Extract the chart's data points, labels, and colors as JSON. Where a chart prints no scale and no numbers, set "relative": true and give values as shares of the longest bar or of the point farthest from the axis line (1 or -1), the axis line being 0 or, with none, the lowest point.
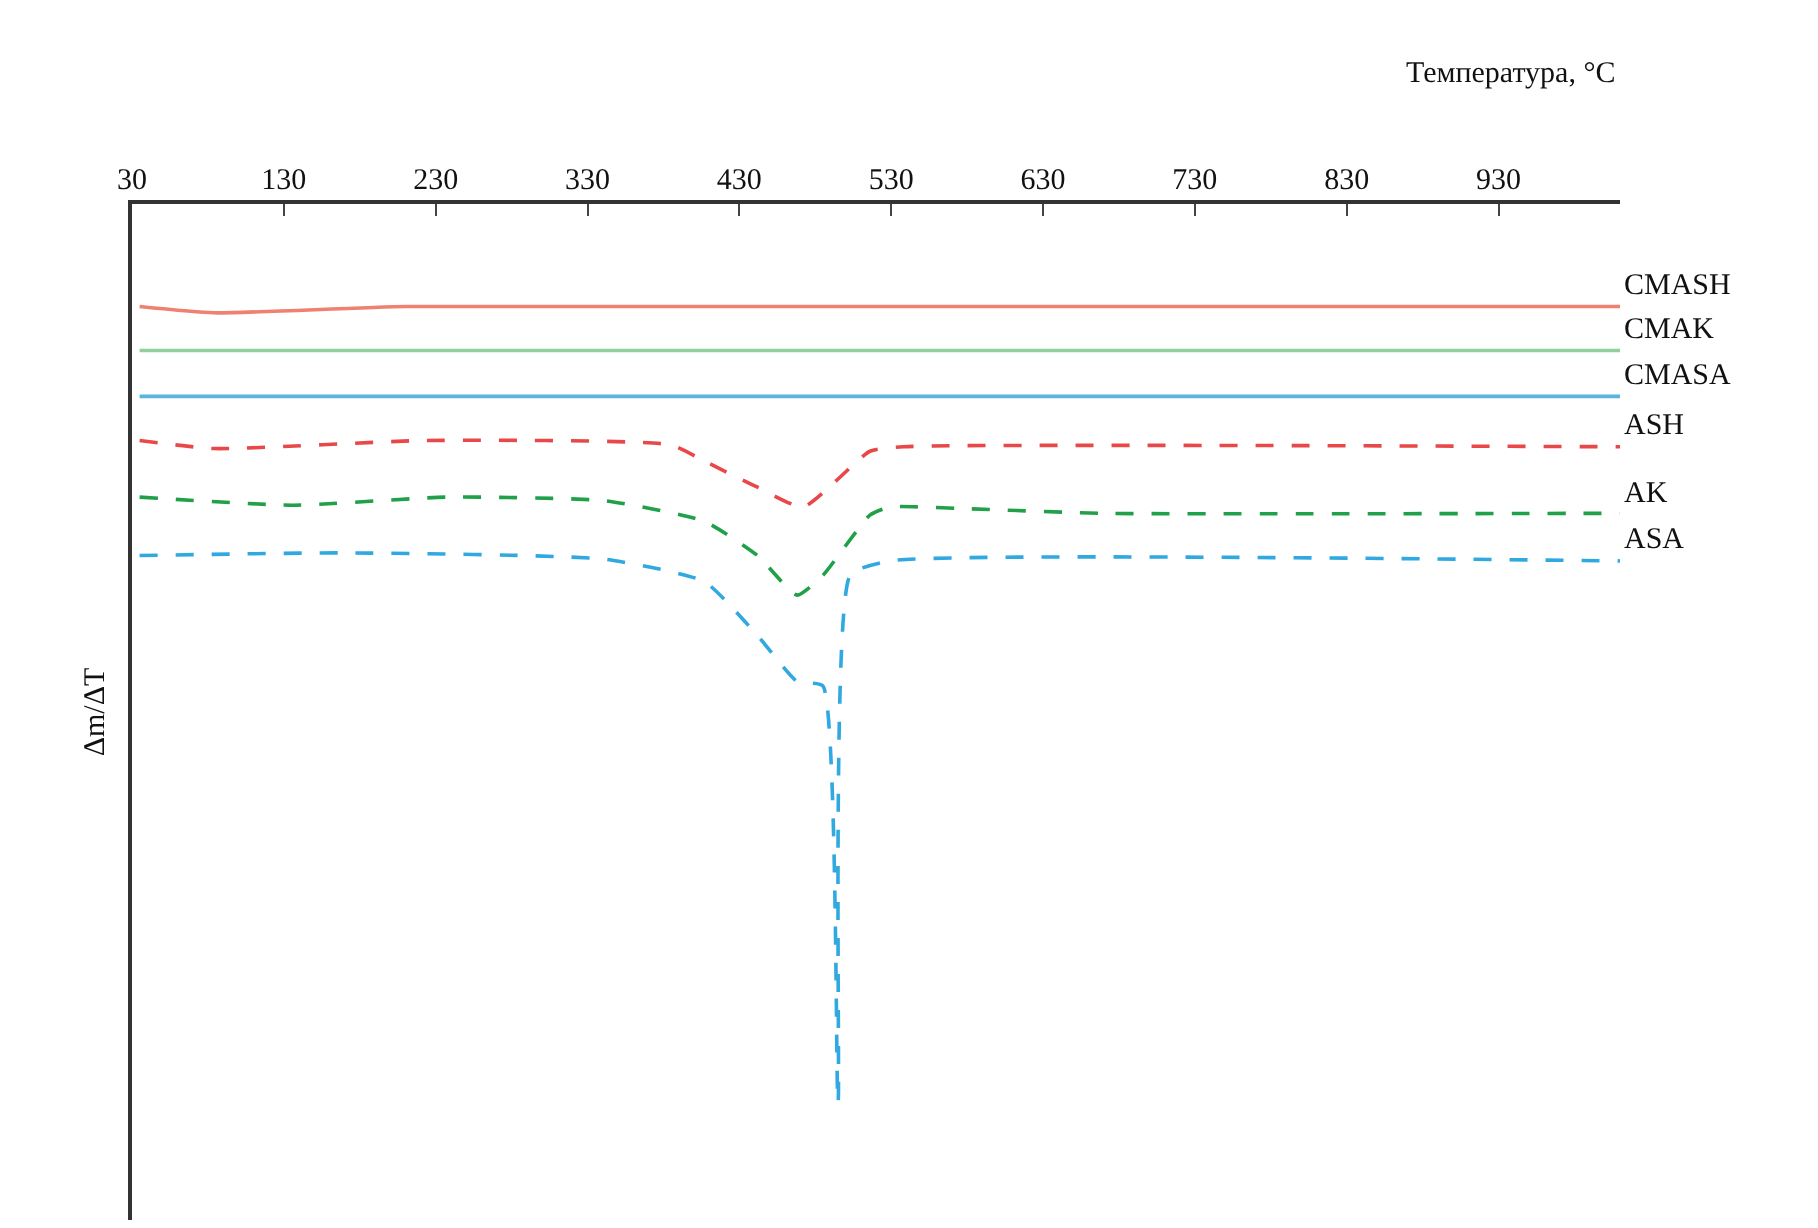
{
  "chart_data": {
    "type": "line",
    "relative": true,
    "xlabel": "Температура, °C",
    "ylabel": "Δm/ΔT",
    "xlim": [
      30,
      1010
    ],
    "xticks": [
      30,
      130,
      230,
      330,
      430,
      530,
      630,
      730,
      830,
      930
    ],
    "legend": false,
    "grid": false,
    "marker": "none",
    "series": [
      {
        "name": "CMASH",
        "color": "#f08070",
        "line_style": "solid",
        "x": [
          35,
          84,
          211,
          1010
        ],
        "values": [
          -0.114,
          -0.121,
          -0.114,
          -0.114
        ]
      },
      {
        "name": "CMAK",
        "color": "#8fd09c",
        "line_style": "solid",
        "x": [
          35,
          1010
        ],
        "values": [
          -0.163,
          -0.163
        ]
      },
      {
        "name": "CMASA",
        "color": "#5ab4e0",
        "line_style": "solid",
        "x": [
          35,
          1010
        ],
        "values": [
          -0.214,
          -0.214
        ]
      },
      {
        "name": "ASH",
        "color": "#e84848",
        "line_style": "dashed",
        "x": [
          35,
          84,
          224,
          385,
          407,
          442,
          472,
          516,
          538,
          1010
        ],
        "values": [
          -0.263,
          -0.272,
          -0.263,
          -0.268,
          -0.286,
          -0.315,
          -0.337,
          -0.275,
          -0.27,
          -0.27
        ]
      },
      {
        "name": "AK",
        "color": "#20a048",
        "line_style": "dashed",
        "x": [
          35,
          136,
          237,
          341,
          407,
          442,
          468,
          485,
          516,
          529,
          581,
          669,
          1010
        ],
        "values": [
          -0.326,
          -0.335,
          -0.326,
          -0.33,
          -0.353,
          -0.391,
          -0.435,
          -0.413,
          -0.346,
          -0.337,
          -0.339,
          -0.344,
          -0.344
        ]
      },
      {
        "name": "ASA",
        "color": "#30a8e0",
        "line_style": "dashed",
        "x": [
          35,
          170,
          341,
          407,
          442,
          468,
          485,
          495,
          503,
          529,
          1010
        ],
        "values": [
          -0.391,
          -0.388,
          -0.395,
          -0.42,
          -0.48,
          -0.531,
          -0.536,
          -1,
          -0.413,
          -0.397,
          -0.397
        ]
      }
    ]
  }
}
